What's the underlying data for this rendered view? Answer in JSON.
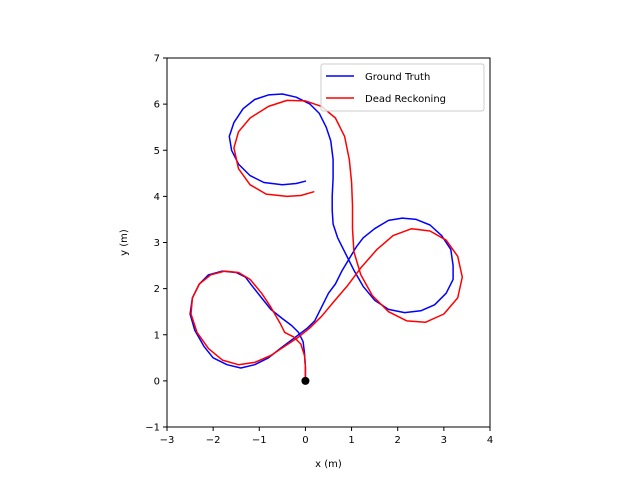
{
  "chart_data": {
    "type": "line",
    "title": "",
    "xlabel": "x (m)",
    "ylabel": "y (m)",
    "xlim": [
      -3,
      4
    ],
    "ylim": [
      -1,
      7
    ],
    "xticks": [
      -3,
      -2,
      -1,
      0,
      1,
      2,
      3,
      4
    ],
    "yticks": [
      -1,
      0,
      1,
      2,
      3,
      4,
      5,
      6,
      7
    ],
    "xtick_labels": [
      "−3",
      "−2",
      "−1",
      "0",
      "1",
      "2",
      "3",
      "4"
    ],
    "ytick_labels": [
      "−1",
      "0",
      "1",
      "2",
      "3",
      "4",
      "5",
      "6",
      "7"
    ],
    "grid": false,
    "legend_position": "top-right",
    "start_marker": {
      "x": 0,
      "y": 0,
      "color": "#000000"
    },
    "series": [
      {
        "name": "Ground Truth",
        "color": "#0000ff",
        "points": [
          [
            0.0,
            0.0
          ],
          [
            0.0,
            0.3
          ],
          [
            -0.02,
            0.6
          ],
          [
            -0.05,
            0.85
          ],
          [
            -0.15,
            1.05
          ],
          [
            -0.3,
            1.2
          ],
          [
            -0.5,
            1.35
          ],
          [
            -0.75,
            1.55
          ],
          [
            -0.95,
            1.8
          ],
          [
            -1.15,
            2.05
          ],
          [
            -1.3,
            2.25
          ],
          [
            -1.5,
            2.35
          ],
          [
            -1.8,
            2.38
          ],
          [
            -2.1,
            2.3
          ],
          [
            -2.3,
            2.1
          ],
          [
            -2.45,
            1.8
          ],
          [
            -2.5,
            1.45
          ],
          [
            -2.4,
            1.1
          ],
          [
            -2.2,
            0.75
          ],
          [
            -2.0,
            0.5
          ],
          [
            -1.7,
            0.35
          ],
          [
            -1.4,
            0.28
          ],
          [
            -1.1,
            0.35
          ],
          [
            -0.8,
            0.5
          ],
          [
            -0.55,
            0.7
          ],
          [
            -0.35,
            0.85
          ],
          [
            -0.15,
            1.0
          ],
          [
            0.05,
            1.15
          ],
          [
            0.2,
            1.3
          ],
          [
            0.35,
            1.6
          ],
          [
            0.5,
            1.9
          ],
          [
            0.65,
            2.1
          ],
          [
            0.8,
            2.4
          ],
          [
            0.95,
            2.65
          ],
          [
            1.1,
            2.9
          ],
          [
            1.25,
            3.1
          ],
          [
            1.5,
            3.3
          ],
          [
            1.8,
            3.48
          ],
          [
            2.1,
            3.53
          ],
          [
            2.4,
            3.5
          ],
          [
            2.7,
            3.38
          ],
          [
            2.95,
            3.15
          ],
          [
            3.15,
            2.85
          ],
          [
            3.2,
            2.5
          ],
          [
            3.2,
            2.2
          ],
          [
            3.05,
            1.9
          ],
          [
            2.8,
            1.65
          ],
          [
            2.5,
            1.52
          ],
          [
            2.15,
            1.48
          ],
          [
            1.8,
            1.55
          ],
          [
            1.5,
            1.75
          ],
          [
            1.25,
            2.05
          ],
          [
            1.05,
            2.4
          ],
          [
            0.85,
            2.8
          ],
          [
            0.7,
            3.1
          ],
          [
            0.6,
            3.4
          ],
          [
            0.58,
            3.7
          ],
          [
            0.58,
            4.0
          ],
          [
            0.6,
            4.4
          ],
          [
            0.6,
            4.8
          ],
          [
            0.55,
            5.2
          ],
          [
            0.45,
            5.5
          ],
          [
            0.3,
            5.8
          ],
          [
            0.1,
            6.0
          ],
          [
            -0.2,
            6.15
          ],
          [
            -0.5,
            6.22
          ],
          [
            -0.8,
            6.2
          ],
          [
            -1.1,
            6.1
          ],
          [
            -1.35,
            5.9
          ],
          [
            -1.55,
            5.6
          ],
          [
            -1.65,
            5.3
          ],
          [
            -1.6,
            5.0
          ],
          [
            -1.45,
            4.7
          ],
          [
            -1.2,
            4.45
          ],
          [
            -0.9,
            4.3
          ],
          [
            -0.5,
            4.25
          ],
          [
            -0.2,
            4.28
          ],
          [
            0.0,
            4.33
          ]
        ]
      },
      {
        "name": "Dead Reckoning",
        "color": "#ff0000",
        "points": [
          [
            0.0,
            0.0
          ],
          [
            0.0,
            0.3
          ],
          [
            -0.02,
            0.55
          ],
          [
            -0.1,
            0.8
          ],
          [
            -0.25,
            0.95
          ],
          [
            -0.45,
            1.05
          ],
          [
            -0.55,
            1.25
          ],
          [
            -0.75,
            1.6
          ],
          [
            -0.95,
            1.9
          ],
          [
            -1.2,
            2.2
          ],
          [
            -1.45,
            2.35
          ],
          [
            -1.75,
            2.38
          ],
          [
            -2.05,
            2.3
          ],
          [
            -2.3,
            2.1
          ],
          [
            -2.45,
            1.8
          ],
          [
            -2.48,
            1.45
          ],
          [
            -2.35,
            1.05
          ],
          [
            -2.1,
            0.7
          ],
          [
            -1.8,
            0.45
          ],
          [
            -1.45,
            0.35
          ],
          [
            -1.1,
            0.4
          ],
          [
            -0.75,
            0.55
          ],
          [
            -0.45,
            0.75
          ],
          [
            -0.15,
            0.95
          ],
          [
            0.1,
            1.15
          ],
          [
            0.35,
            1.4
          ],
          [
            0.6,
            1.7
          ],
          [
            0.9,
            2.05
          ],
          [
            1.2,
            2.45
          ],
          [
            1.55,
            2.85
          ],
          [
            1.9,
            3.15
          ],
          [
            2.3,
            3.3
          ],
          [
            2.7,
            3.25
          ],
          [
            3.05,
            3.05
          ],
          [
            3.3,
            2.7
          ],
          [
            3.4,
            2.25
          ],
          [
            3.3,
            1.8
          ],
          [
            3.0,
            1.45
          ],
          [
            2.6,
            1.27
          ],
          [
            2.2,
            1.3
          ],
          [
            1.8,
            1.5
          ],
          [
            1.45,
            1.85
          ],
          [
            1.2,
            2.3
          ],
          [
            1.05,
            2.8
          ],
          [
            1.02,
            3.3
          ],
          [
            1.02,
            3.8
          ],
          [
            1.0,
            4.3
          ],
          [
            0.95,
            4.8
          ],
          [
            0.85,
            5.3
          ],
          [
            0.65,
            5.7
          ],
          [
            0.35,
            5.95
          ],
          [
            0.0,
            6.07
          ],
          [
            -0.4,
            6.08
          ],
          [
            -0.8,
            5.95
          ],
          [
            -1.2,
            5.7
          ],
          [
            -1.45,
            5.4
          ],
          [
            -1.55,
            5.05
          ],
          [
            -1.45,
            4.6
          ],
          [
            -1.2,
            4.25
          ],
          [
            -0.85,
            4.05
          ],
          [
            -0.4,
            4.0
          ],
          [
            -0.1,
            4.02
          ],
          [
            0.18,
            4.1
          ]
        ]
      }
    ]
  }
}
